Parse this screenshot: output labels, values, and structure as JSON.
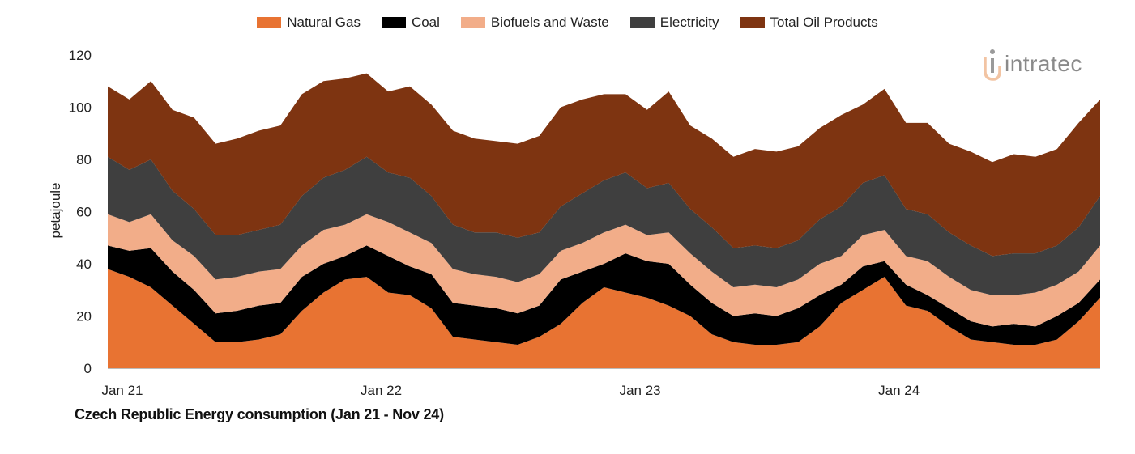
{
  "chart_data": {
    "type": "area",
    "stacked": true,
    "title": "Czech Republic Energy consumption (Jan 21 - Nov 24)",
    "ylabel": "petajoule",
    "xlabel": "",
    "ylim": [
      0,
      120
    ],
    "yticks": [
      0,
      20,
      40,
      60,
      80,
      100,
      120
    ],
    "xtick_labels": [
      "Jan 21",
      "Jan 22",
      "Jan 23",
      "Jan 24"
    ],
    "xtick_indices": [
      0,
      12,
      24,
      36
    ],
    "grid": false,
    "legend_position": "top",
    "x": [
      "2021-01",
      "2021-02",
      "2021-03",
      "2021-04",
      "2021-05",
      "2021-06",
      "2021-07",
      "2021-08",
      "2021-09",
      "2021-10",
      "2021-11",
      "2021-12",
      "2022-01",
      "2022-02",
      "2022-03",
      "2022-04",
      "2022-05",
      "2022-06",
      "2022-07",
      "2022-08",
      "2022-09",
      "2022-10",
      "2022-11",
      "2022-12",
      "2023-01",
      "2023-02",
      "2023-03",
      "2023-04",
      "2023-05",
      "2023-06",
      "2023-07",
      "2023-08",
      "2023-09",
      "2023-10",
      "2023-11",
      "2023-12",
      "2024-01",
      "2024-02",
      "2024-03",
      "2024-04",
      "2024-05",
      "2024-06",
      "2024-07",
      "2024-08",
      "2024-09",
      "2024-10",
      "2024-11"
    ],
    "series": [
      {
        "name": "Natural Gas",
        "color": "#E87332",
        "values": [
          38,
          35,
          31,
          24,
          17,
          10,
          10,
          11,
          13,
          22,
          29,
          34,
          35,
          29,
          28,
          23,
          12,
          11,
          10,
          9,
          12,
          17,
          25,
          31,
          29,
          27,
          24,
          20,
          13,
          10,
          9,
          9,
          10,
          16,
          25,
          30,
          35,
          24,
          22,
          16,
          11,
          10,
          9,
          9,
          11,
          18,
          27
        ]
      },
      {
        "name": "Coal",
        "color": "#000000",
        "values": [
          9,
          10,
          15,
          13,
          13,
          11,
          12,
          13,
          12,
          13,
          11,
          9,
          12,
          14,
          11,
          13,
          13,
          13,
          13,
          12,
          12,
          17,
          12,
          9,
          15,
          14,
          16,
          12,
          12,
          10,
          12,
          11,
          13,
          12,
          7,
          9,
          6,
          8,
          6,
          7,
          7,
          6,
          8,
          7,
          9,
          7,
          7
        ]
      },
      {
        "name": "Biofuels and Waste",
        "color": "#F2AD89",
        "values": [
          12,
          11,
          13,
          12,
          13,
          13,
          13,
          13,
          13,
          12,
          13,
          12,
          12,
          13,
          13,
          12,
          13,
          12,
          12,
          12,
          12,
          11,
          11,
          12,
          11,
          10,
          12,
          12,
          12,
          11,
          11,
          11,
          11,
          12,
          11,
          12,
          12,
          11,
          13,
          12,
          12,
          12,
          11,
          13,
          12,
          12,
          13
        ]
      },
      {
        "name": "Electricity",
        "color": "#3F3F3F",
        "values": [
          22,
          20,
          21,
          19,
          18,
          17,
          16,
          16,
          17,
          19,
          20,
          21,
          22,
          19,
          21,
          18,
          17,
          16,
          17,
          17,
          16,
          17,
          19,
          20,
          20,
          18,
          19,
          17,
          17,
          15,
          15,
          15,
          15,
          17,
          19,
          20,
          21,
          18,
          18,
          17,
          17,
          15,
          16,
          15,
          15,
          17,
          19
        ]
      },
      {
        "name": "Total Oil Products",
        "color": "#7E3411",
        "values": [
          27,
          27,
          30,
          31,
          35,
          35,
          37,
          38,
          38,
          39,
          37,
          35,
          32,
          31,
          35,
          35,
          36,
          36,
          35,
          36,
          37,
          38,
          36,
          33,
          30,
          30,
          35,
          32,
          34,
          35,
          37,
          37,
          36,
          35,
          35,
          30,
          33,
          33,
          35,
          34,
          36,
          36,
          38,
          37,
          37,
          40,
          37
        ]
      }
    ]
  },
  "legend": {
    "items": [
      {
        "label": "Natural Gas",
        "color": "#E87332"
      },
      {
        "label": "Coal",
        "color": "#000000"
      },
      {
        "label": "Biofuels and Waste",
        "color": "#F2AD89"
      },
      {
        "label": "Electricity",
        "color": "#3F3F3F"
      },
      {
        "label": "Total Oil Products",
        "color": "#7E3411"
      }
    ]
  },
  "logo": {
    "text": "intratec",
    "color": "#8a8a8a",
    "accent": "#F2C4A3"
  }
}
